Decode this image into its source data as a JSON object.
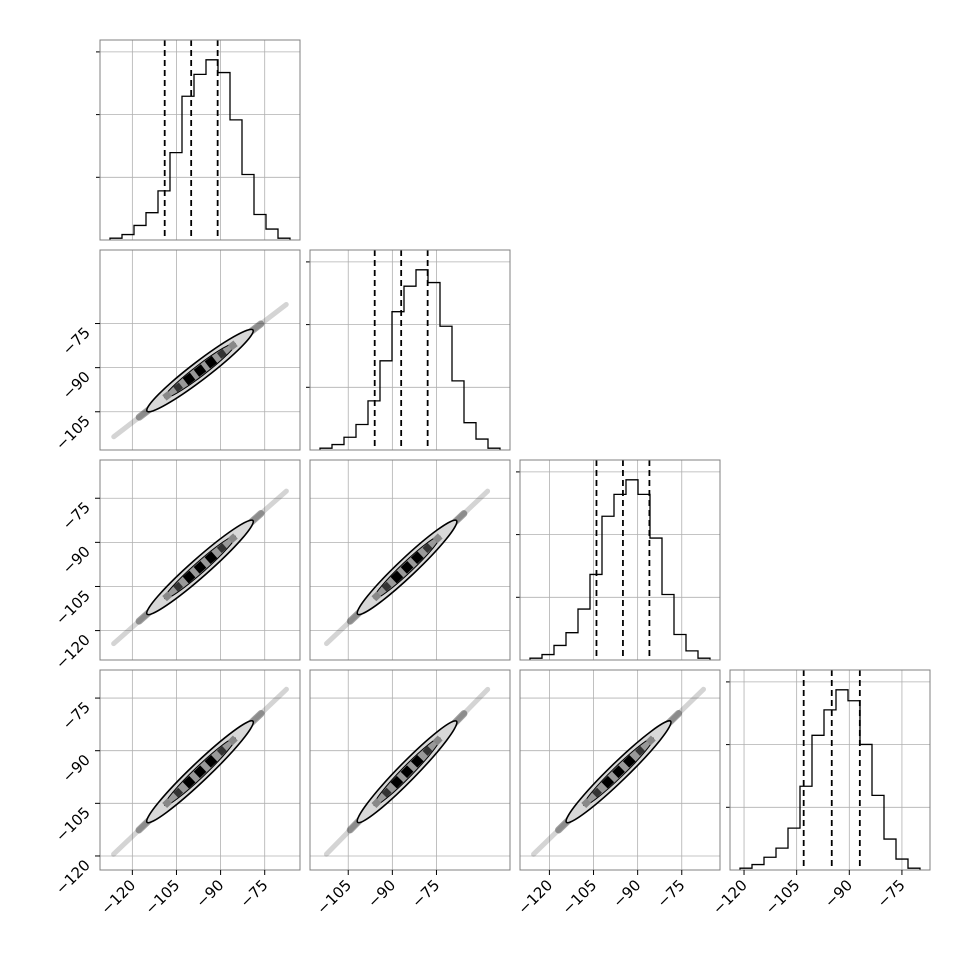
{
  "chart_data": {
    "type": "corner",
    "dimensions": 4,
    "grid": true,
    "tick_label_rotation_deg": 45,
    "axes": [
      {
        "lim": [
          -131,
          -63
        ],
        "ticks": [
          -120,
          -105,
          -90,
          -75
        ],
        "labels": [
          "−120",
          "−105",
          "−90",
          "−75"
        ]
      },
      {
        "lim": [
          -118,
          -50
        ],
        "ticks": [
          -105,
          -90,
          -75
        ],
        "labels": [
          "−105",
          "−90",
          "−75"
        ]
      },
      {
        "lim": [
          -130,
          -62
        ],
        "ticks": [
          -120,
          -105,
          -90,
          -75
        ],
        "labels": [
          "−120",
          "−105",
          "−90",
          "−75"
        ]
      },
      {
        "lim": [
          -124,
          -67
        ],
        "ticks": [
          -120,
          -105,
          -90,
          -75
        ],
        "labels": [
          "−120",
          "−105",
          "−90",
          "−75"
        ]
      }
    ],
    "histograms": [
      {
        "quantiles": [
          -109,
          -100,
          -91
        ],
        "max": 100,
        "counts": [
          1,
          3,
          8,
          15,
          27,
          48,
          79,
          91,
          99,
          92,
          66,
          36,
          14,
          6,
          1
        ]
      },
      {
        "quantiles": [
          -96,
          -87,
          -78
        ],
        "max": 100,
        "counts": [
          1,
          3,
          7,
          14,
          27,
          49,
          76,
          90,
          99,
          92,
          68,
          38,
          15,
          6,
          1
        ]
      },
      {
        "quantiles": [
          -104,
          -95,
          -86
        ],
        "max": 100,
        "counts": [
          1,
          3,
          8,
          15,
          28,
          47,
          79,
          91,
          99,
          91,
          67,
          36,
          14,
          5,
          1
        ]
      },
      {
        "quantiles": [
          -103,
          -95,
          -87
        ],
        "max": 100,
        "counts": [
          1,
          3,
          7,
          12,
          23,
          46,
          74,
          88,
          99,
          93,
          69,
          41,
          17,
          6,
          1
        ]
      }
    ],
    "pairs": [
      {
        "row": 1,
        "col": 0,
        "x_range": [
          -127,
          -67
        ],
        "y_range": [
          -114,
          -68
        ],
        "mean_x": -100,
        "mean_y": -87
      },
      {
        "row": 2,
        "col": 0,
        "x_range": [
          -127,
          -67
        ],
        "y_range": [
          -125,
          -72
        ],
        "mean_x": -100,
        "mean_y": -95
      },
      {
        "row": 2,
        "col": 1,
        "x_range": [
          -113,
          -57
        ],
        "y_range": [
          -125,
          -72
        ],
        "mean_x": -87,
        "mean_y": -95
      },
      {
        "row": 3,
        "col": 0,
        "x_range": [
          -127,
          -67
        ],
        "y_range": [
          -120,
          -72
        ],
        "mean_x": -100,
        "mean_y": -95
      },
      {
        "row": 3,
        "col": 1,
        "x_range": [
          -113,
          -57
        ],
        "y_range": [
          -120,
          -72
        ],
        "mean_x": -87,
        "mean_y": -95
      },
      {
        "row": 3,
        "col": 2,
        "x_range": [
          -126,
          -67
        ],
        "y_range": [
          -120,
          -72
        ],
        "mean_x": -95,
        "mean_y": -95
      }
    ],
    "colors": {
      "line": "#000000",
      "grid": "#b0b0b0",
      "frame": "#808080"
    }
  }
}
